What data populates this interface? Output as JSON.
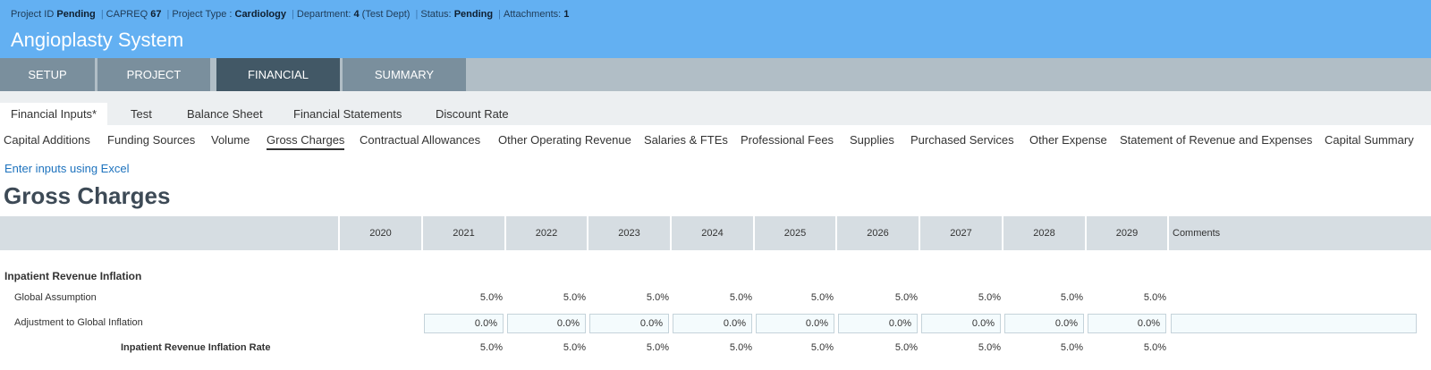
{
  "meta": {
    "project_id_label": "Project ID",
    "project_id_value": "Pending",
    "capreq_label": "CAPREQ",
    "capreq_value": "67",
    "project_type_label": "Project Type :",
    "project_type_value": "Cardiology",
    "department_label": "Department:",
    "department_value": "4",
    "department_extra": "(Test Dept)",
    "status_label": "Status:",
    "status_value": "Pending",
    "attachments_label": "Attachments:",
    "attachments_value": "1"
  },
  "app_title": "Angioplasty System",
  "main_tabs": [
    "SETUP",
    "PROJECT",
    "FINANCIAL",
    "SUMMARY"
  ],
  "sub_tabs": [
    "Financial Inputs*",
    "Test",
    "Balance Sheet",
    "Financial Statements",
    "Discount Rate"
  ],
  "sections": [
    "Capital Additions",
    "Funding Sources",
    "Volume",
    "Gross Charges",
    "Contractual Allowances",
    "Other Operating Revenue",
    "Salaries & FTEs",
    "Professional Fees",
    "Supplies",
    "Purchased Services",
    "Other Expense",
    "Statement of Revenue and Expenses",
    "Capital Summary"
  ],
  "excel_link": "Enter inputs using Excel",
  "page_title": "Gross Charges",
  "years": [
    "2020",
    "2021",
    "2022",
    "2023",
    "2024",
    "2025",
    "2026",
    "2027",
    "2028",
    "2029"
  ],
  "comments_header": "Comments",
  "group_title": "Inpatient Revenue Inflation",
  "rows": {
    "global": {
      "label": "Global Assumption",
      "values": [
        "5.0%",
        "5.0%",
        "5.0%",
        "5.0%",
        "5.0%",
        "5.0%",
        "5.0%",
        "5.0%",
        "5.0%"
      ]
    },
    "adjustment": {
      "label": "Adjustment to Global Inflation",
      "values": [
        "0.0%",
        "0.0%",
        "0.0%",
        "0.0%",
        "0.0%",
        "0.0%",
        "0.0%",
        "0.0%",
        "0.0%"
      ]
    },
    "rate": {
      "label": "Inpatient Revenue Inflation Rate",
      "values": [
        "5.0%",
        "5.0%",
        "5.0%",
        "5.0%",
        "5.0%",
        "5.0%",
        "5.0%",
        "5.0%",
        "5.0%"
      ]
    }
  }
}
